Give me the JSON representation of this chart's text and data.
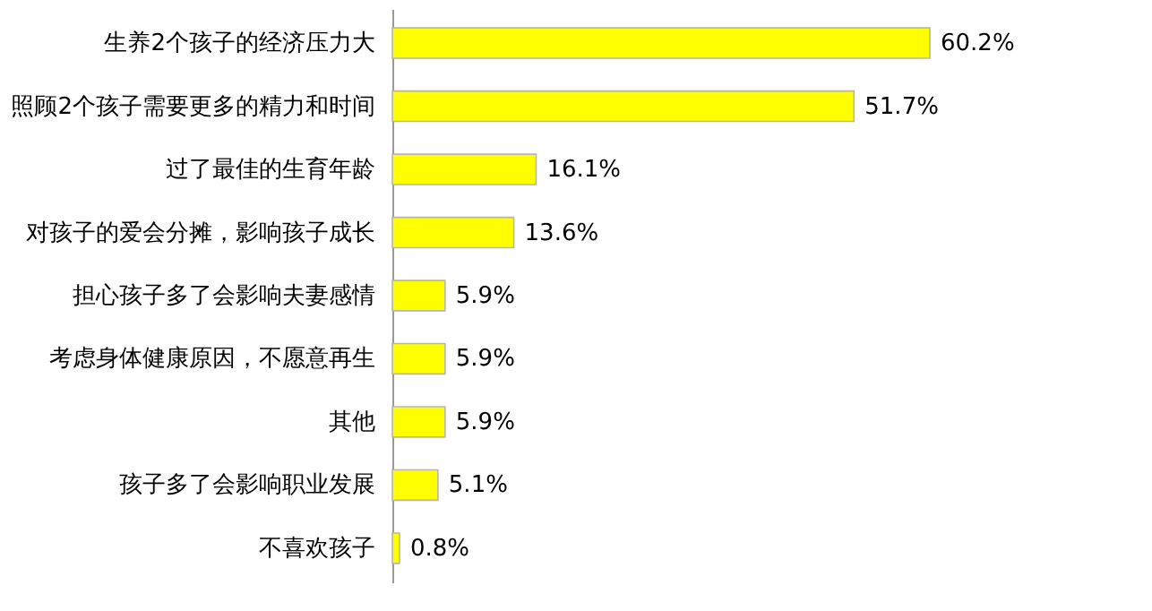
{
  "chart_data": {
    "type": "bar",
    "orientation": "horizontal",
    "categories": [
      "生养2个孩子的经济压力大",
      "照顾2个孩子需要更多的精力和时间",
      "过了最佳的生育年龄",
      "对孩子的爱会分摊，影响孩子成长",
      "担心孩子多了会影响夫妻感情",
      "考虑身体健康原因，不愿意再生",
      "其他",
      "孩子多了会影响职业发展",
      "不喜欢孩子"
    ],
    "values": [
      60.2,
      51.7,
      16.1,
      13.6,
      5.9,
      5.9,
      5.9,
      5.1,
      0.8
    ],
    "value_labels": [
      "60.2%",
      "51.7%",
      "16.1%",
      "13.6%",
      "5.9%",
      "5.9%",
      "5.9%",
      "5.1%",
      "0.8%"
    ],
    "color": "#ffff00",
    "tick_labels": "y",
    "grid": false
  }
}
